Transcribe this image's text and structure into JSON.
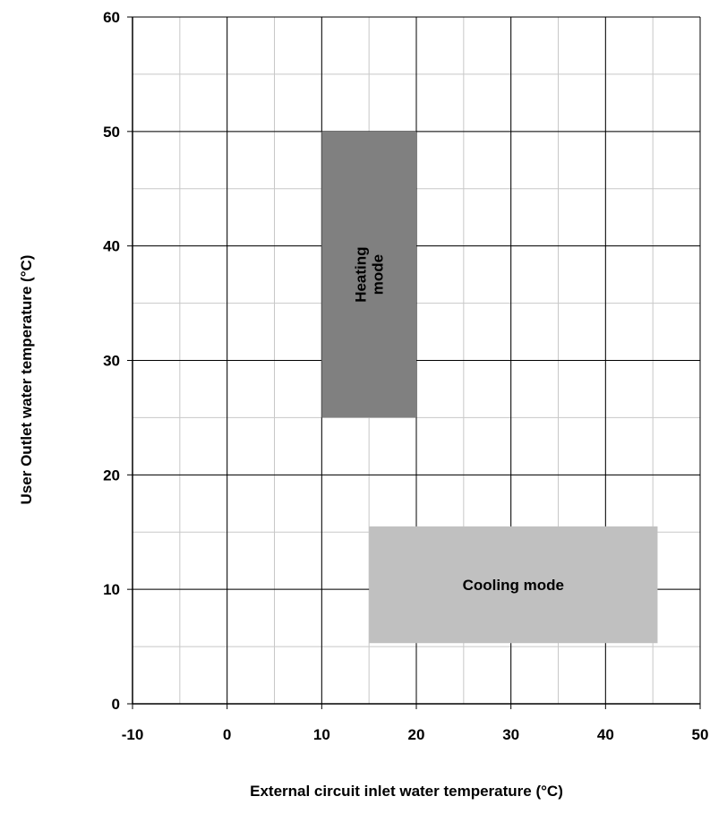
{
  "chart_data": {
    "type": "area",
    "title": "",
    "xlabel": "External circuit inlet water temperature (°C)",
    "ylabel": "User Outlet water temperature (°C)",
    "xlim": [
      -10,
      50
    ],
    "ylim": [
      0,
      60
    ],
    "x_ticks": [
      -10,
      0,
      10,
      20,
      30,
      40,
      50
    ],
    "y_ticks": [
      0,
      10,
      20,
      30,
      40,
      50,
      60
    ],
    "x_minor_step": 5,
    "y_minor_step": 5,
    "grid": true,
    "regions": [
      {
        "name": "Heating mode",
        "label_lines": [
          "Heating",
          "mode"
        ],
        "label_rotation": "vertical",
        "x": [
          10,
          20
        ],
        "y": [
          25,
          50
        ],
        "color": "#808080"
      },
      {
        "name": "Cooling mode",
        "label_lines": [
          "Cooling mode"
        ],
        "label_rotation": "horizontal",
        "x": [
          15,
          45.5
        ],
        "y": [
          5.3,
          15.5
        ],
        "color": "#c0c0c0"
      }
    ]
  }
}
